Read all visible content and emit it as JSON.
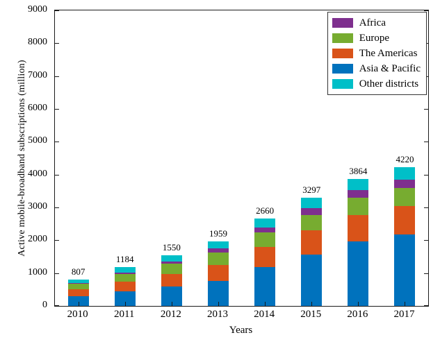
{
  "chart_data": {
    "type": "bar",
    "stacked": true,
    "title": "",
    "xlabel": "Years",
    "ylabel": "Active mobile-broadband subscriptions (million)",
    "ylim": [
      0,
      9000
    ],
    "ytick_step": 1000,
    "grid": false,
    "legend_position": "top-right",
    "categories": [
      "2010",
      "2011",
      "2012",
      "2013",
      "2014",
      "2015",
      "2016",
      "2017"
    ],
    "totals": [
      807,
      1184,
      1550,
      1959,
      2660,
      3297,
      3864,
      4220
    ],
    "series": [
      {
        "name": "Asia & Pacific",
        "color": "#0072BD",
        "values": [
          300,
          440,
          590,
          770,
          1190,
          1570,
          1960,
          2170
        ]
      },
      {
        "name": "The Americas",
        "color": "#D95319",
        "values": [
          205,
          295,
          385,
          485,
          615,
          725,
          815,
          875
        ]
      },
      {
        "name": "Europe",
        "color": "#77AC30",
        "values": [
          165,
          235,
          305,
          375,
          425,
          475,
          515,
          555
        ]
      },
      {
        "name": "Africa",
        "color": "#7E2F8E",
        "values": [
          35,
          55,
          80,
          120,
          160,
          200,
          230,
          250
        ]
      },
      {
        "name": "Other districts",
        "color": "#00BFC8",
        "values": [
          102,
          159,
          190,
          209,
          270,
          327,
          344,
          370
        ]
      }
    ],
    "legend": [
      {
        "label": "Africa",
        "color": "#7E2F8E"
      },
      {
        "label": "Europe",
        "color": "#77AC30"
      },
      {
        "label": "The Americas",
        "color": "#D95319"
      },
      {
        "label": "Asia & Pacific",
        "color": "#0072BD"
      },
      {
        "label": "Other districts",
        "color": "#00BFC8"
      }
    ]
  }
}
